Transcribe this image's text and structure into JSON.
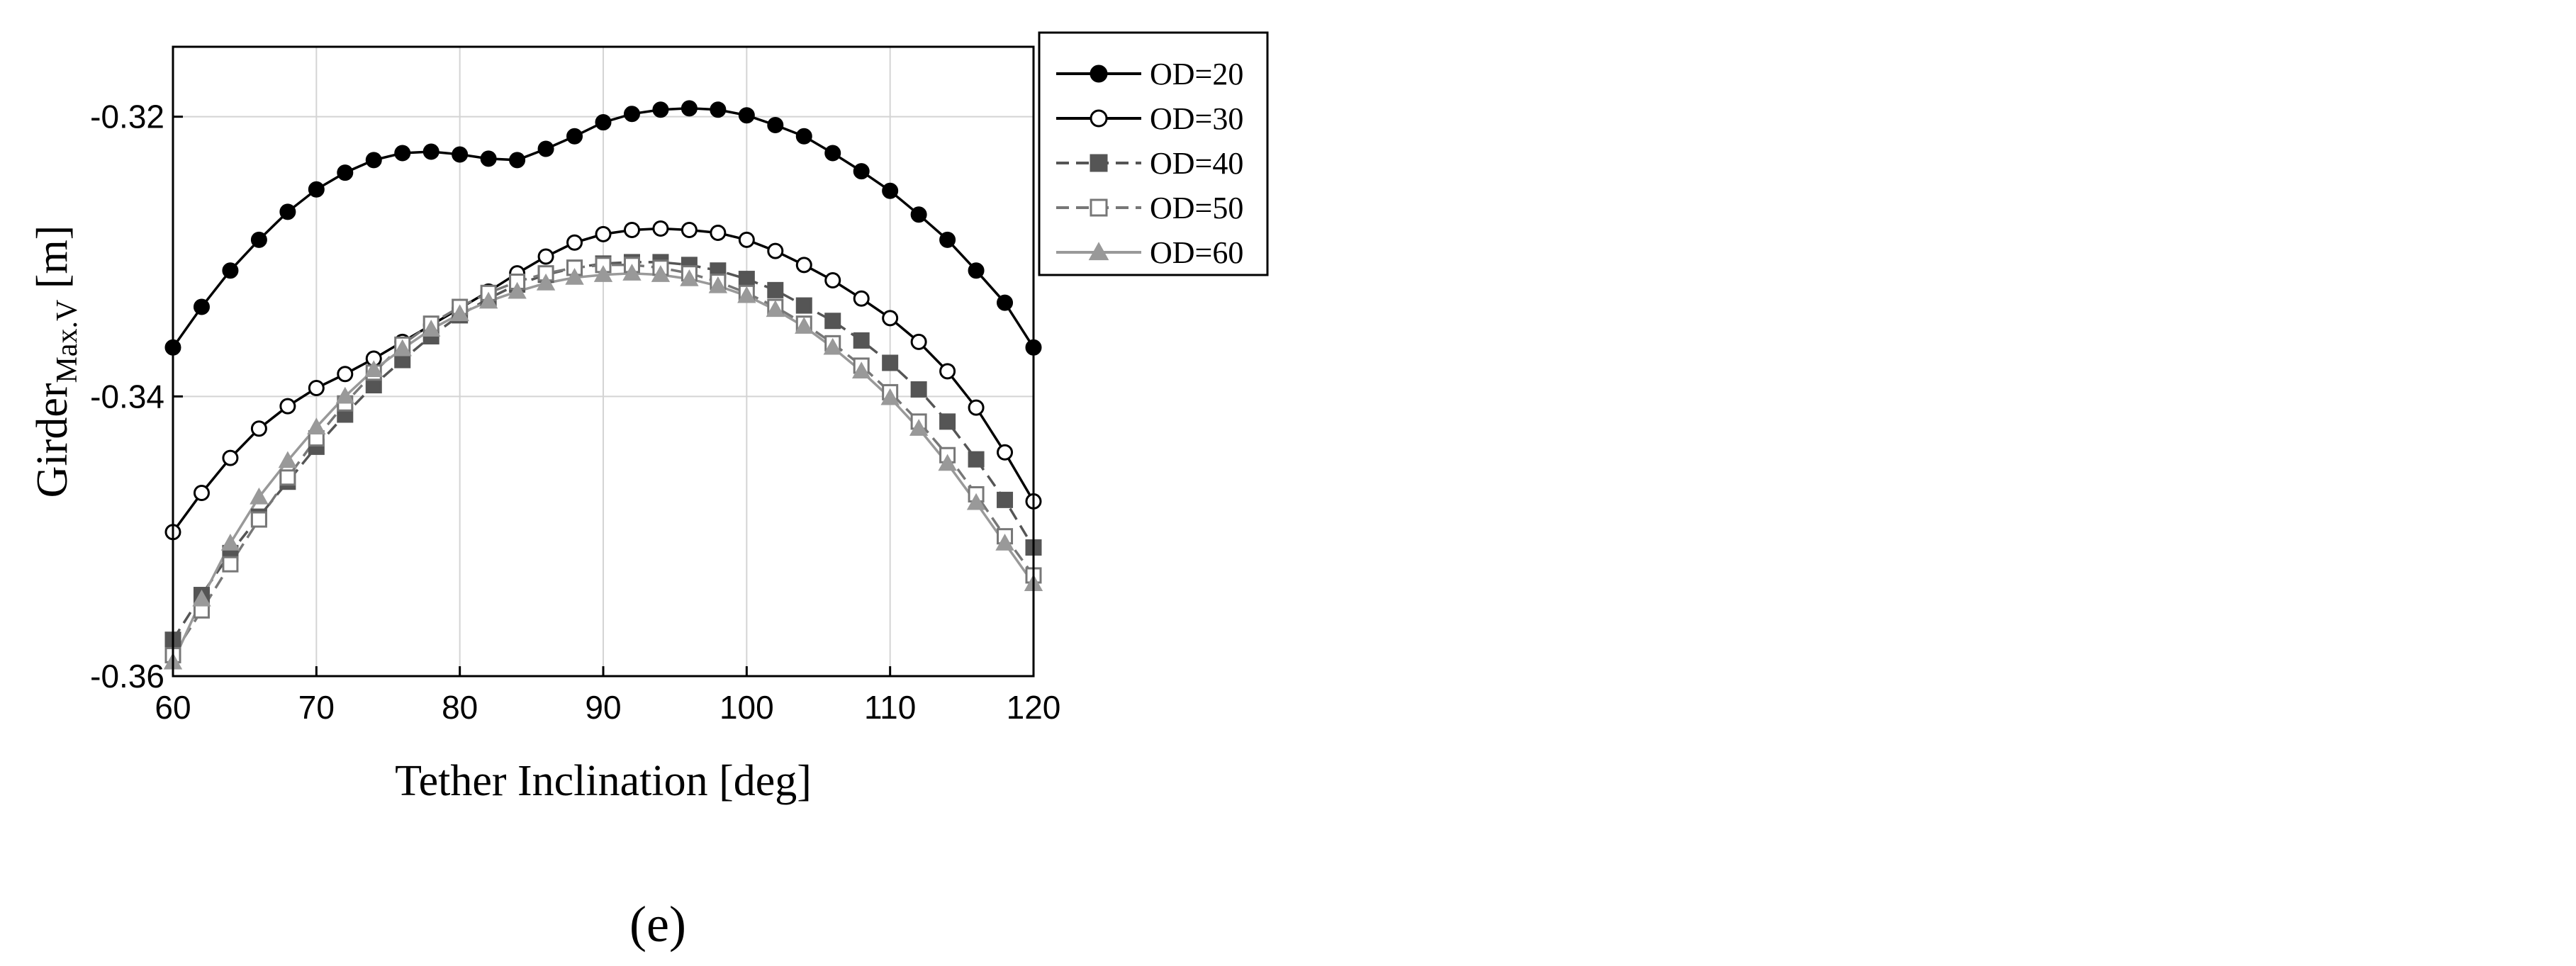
{
  "caption": "(e)",
  "chart_data": {
    "type": "line",
    "xlabel": "Tether Inclination [deg]",
    "ylabel": "Girder",
    "ylabel_subscript": "Max.V",
    "ylabel_unit": " [m]",
    "xlim": [
      60,
      120
    ],
    "ylim": [
      -0.36,
      -0.315
    ],
    "xticks": [
      60,
      70,
      80,
      90,
      100,
      110,
      120
    ],
    "yticks": [
      -0.32,
      -0.34,
      -0.36
    ],
    "xtick_labels": [
      "60",
      "70",
      "80",
      "90",
      "100",
      "110",
      "120"
    ],
    "ytick_labels": [
      "-0.32",
      "-0.34",
      "-0.36"
    ],
    "grid": true,
    "legend_position": "outside-top-right",
    "series": [
      {
        "name": "OD=20",
        "color": "#000000",
        "marker": "circle-filled",
        "dash": "solid",
        "x": [
          60,
          62,
          64,
          66,
          68,
          70,
          72,
          74,
          76,
          78,
          80,
          82,
          84,
          86,
          88,
          90,
          92,
          94,
          96,
          98,
          100,
          102,
          104,
          106,
          108,
          110,
          112,
          114,
          116,
          118,
          120
        ],
        "y": [
          -0.3365,
          -0.3336,
          -0.331,
          -0.3288,
          -0.3268,
          -0.3252,
          -0.324,
          -0.3231,
          -0.3226,
          -0.3225,
          -0.3227,
          -0.323,
          -0.3231,
          -0.3223,
          -0.3214,
          -0.3204,
          -0.3198,
          -0.3195,
          -0.3194,
          -0.3195,
          -0.3199,
          -0.3206,
          -0.3214,
          -0.3226,
          -0.3239,
          -0.3253,
          -0.327,
          -0.3288,
          -0.331,
          -0.3333,
          -0.3365
        ]
      },
      {
        "name": "OD=30",
        "color": "#000000",
        "marker": "circle-open",
        "dash": "solid",
        "x": [
          60,
          62,
          64,
          66,
          68,
          70,
          72,
          74,
          76,
          78,
          80,
          82,
          84,
          86,
          88,
          90,
          92,
          94,
          96,
          98,
          100,
          102,
          104,
          106,
          108,
          110,
          112,
          114,
          116,
          118,
          120
        ],
        "y": [
          -0.3497,
          -0.3469,
          -0.3444,
          -0.3423,
          -0.3407,
          -0.3394,
          -0.3384,
          -0.3373,
          -0.3361,
          -0.3349,
          -0.3337,
          -0.3325,
          -0.3312,
          -0.33,
          -0.329,
          -0.3284,
          -0.3281,
          -0.328,
          -0.3281,
          -0.3283,
          -0.3288,
          -0.3296,
          -0.3306,
          -0.3317,
          -0.333,
          -0.3344,
          -0.3361,
          -0.3382,
          -0.3408,
          -0.344,
          -0.3475
        ]
      },
      {
        "name": "OD=40",
        "color": "#555555",
        "marker": "square-filled",
        "dash": "dashed",
        "x": [
          60,
          62,
          64,
          66,
          68,
          70,
          72,
          74,
          76,
          78,
          80,
          82,
          84,
          86,
          88,
          90,
          92,
          94,
          96,
          98,
          100,
          102,
          104,
          106,
          108,
          110,
          112,
          114,
          116,
          118,
          120
        ],
        "y": [
          -0.3574,
          -0.3542,
          -0.3512,
          -0.3486,
          -0.3461,
          -0.3436,
          -0.3413,
          -0.3392,
          -0.3374,
          -0.3357,
          -0.3342,
          -0.333,
          -0.332,
          -0.3313,
          -0.3308,
          -0.3305,
          -0.3304,
          -0.3304,
          -0.3306,
          -0.331,
          -0.3316,
          -0.3324,
          -0.3335,
          -0.3346,
          -0.336,
          -0.3376,
          -0.3395,
          -0.3418,
          -0.3445,
          -0.3474,
          -0.3508
        ]
      },
      {
        "name": "OD=50",
        "color": "#777777",
        "marker": "square-open",
        "dash": "dashed",
        "x": [
          60,
          62,
          64,
          66,
          68,
          70,
          72,
          74,
          76,
          78,
          80,
          82,
          84,
          86,
          88,
          90,
          92,
          94,
          96,
          98,
          100,
          102,
          104,
          106,
          108,
          110,
          112,
          114,
          116,
          118,
          120
        ],
        "y": [
          -0.3585,
          -0.3553,
          -0.352,
          -0.3488,
          -0.3458,
          -0.343,
          -0.3405,
          -0.3383,
          -0.3363,
          -0.3348,
          -0.3336,
          -0.3326,
          -0.3318,
          -0.3312,
          -0.3308,
          -0.3306,
          -0.3306,
          -0.3308,
          -0.3312,
          -0.3318,
          -0.3326,
          -0.3336,
          -0.3348,
          -0.3362,
          -0.3378,
          -0.3397,
          -0.3418,
          -0.3442,
          -0.347,
          -0.35,
          -0.3528
        ]
      },
      {
        "name": "OD=60",
        "color": "#999999",
        "marker": "triangle-filled",
        "dash": "solid",
        "x": [
          60,
          62,
          64,
          66,
          68,
          70,
          72,
          74,
          76,
          78,
          80,
          82,
          84,
          86,
          88,
          90,
          92,
          94,
          96,
          98,
          100,
          102,
          104,
          106,
          108,
          110,
          112,
          114,
          116,
          118,
          120
        ],
        "y": [
          -0.359,
          -0.3545,
          -0.3505,
          -0.3472,
          -0.3446,
          -0.3422,
          -0.34,
          -0.3381,
          -0.3366,
          -0.3352,
          -0.3341,
          -0.3332,
          -0.3325,
          -0.3319,
          -0.3315,
          -0.3313,
          -0.3312,
          -0.3313,
          -0.3316,
          -0.3321,
          -0.3328,
          -0.3338,
          -0.335,
          -0.3365,
          -0.3382,
          -0.3401,
          -0.3423,
          -0.3448,
          -0.3476,
          -0.3505,
          -0.3534
        ]
      }
    ]
  }
}
